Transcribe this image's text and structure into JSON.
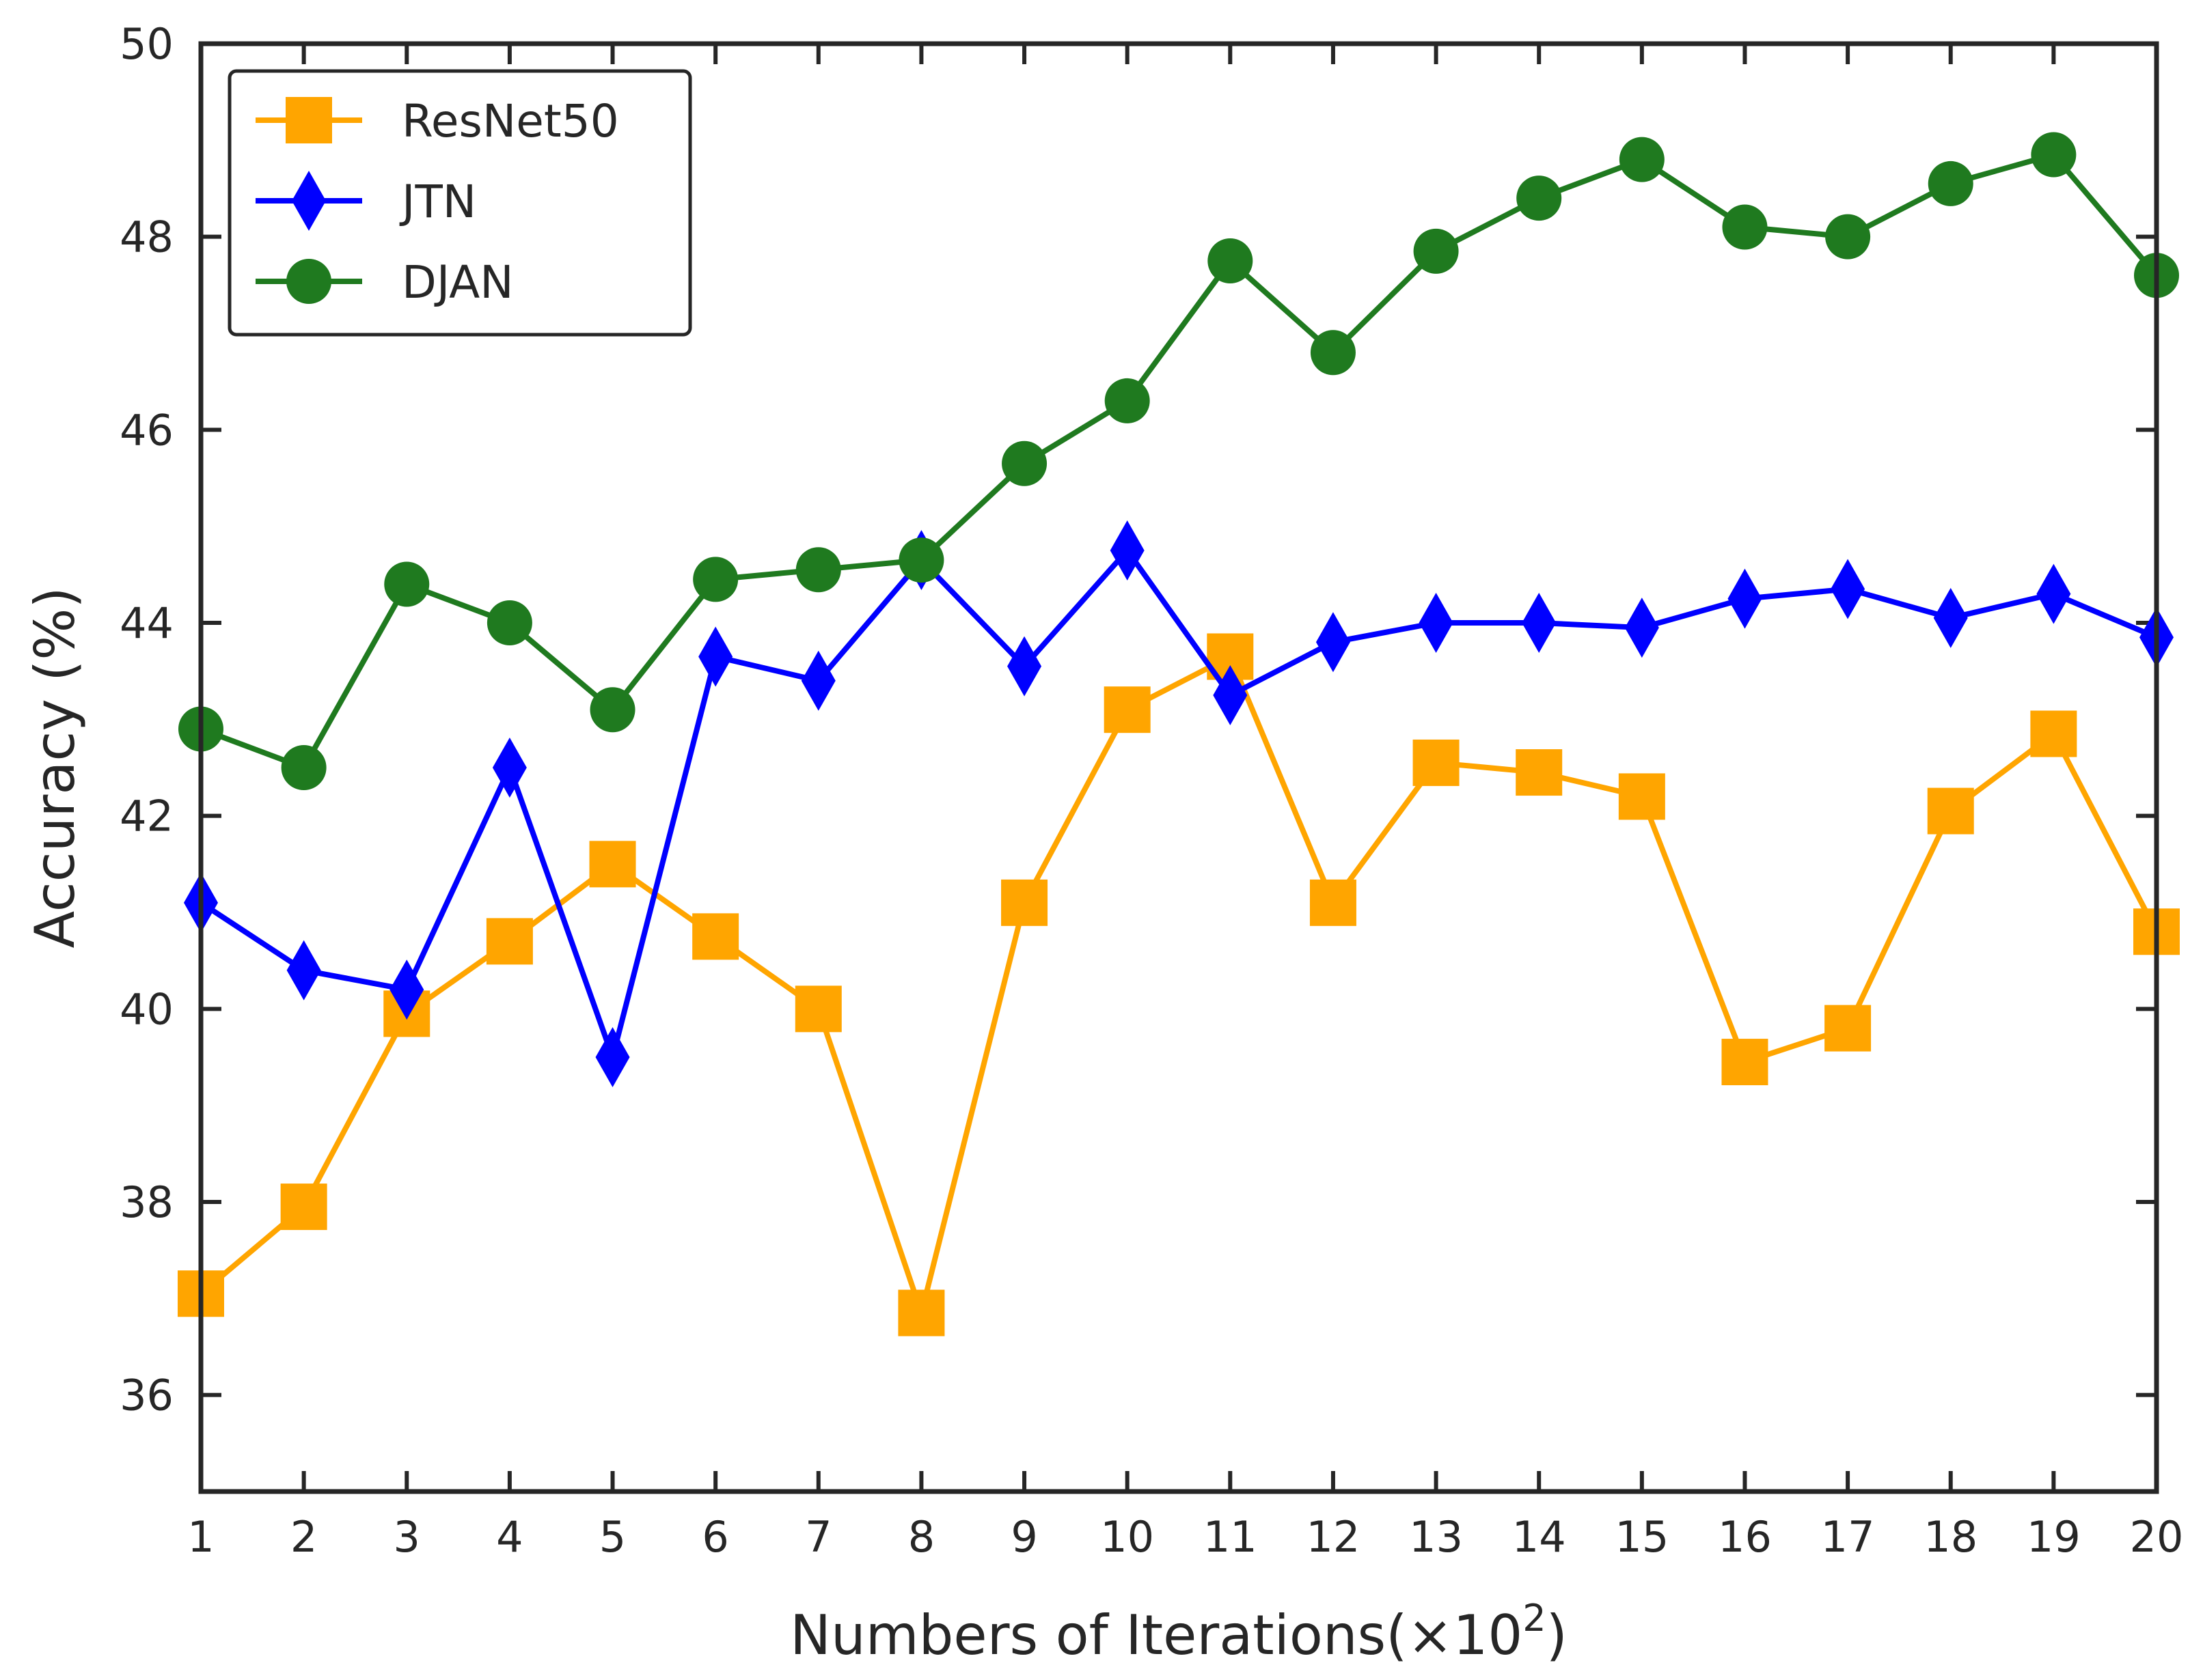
{
  "chart_data": {
    "type": "line",
    "title": "",
    "xlabel": "Numbers of Iterations(×10",
    "xlabel_sup": "2",
    "xlabel_close": ")",
    "ylabel": "Accuracy (%)",
    "xlim": [
      1,
      20
    ],
    "ylim": [
      35,
      50
    ],
    "x": [
      1,
      2,
      3,
      4,
      5,
      6,
      7,
      8,
      9,
      10,
      11,
      12,
      13,
      14,
      15,
      16,
      17,
      18,
      19,
      20
    ],
    "xticks": [
      "1",
      "2",
      "3",
      "4",
      "5",
      "6",
      "7",
      "8",
      "9",
      "10",
      "11",
      "12",
      "13",
      "14",
      "15",
      "16",
      "17",
      "18",
      "19",
      "20"
    ],
    "yticks": [
      36,
      38,
      40,
      42,
      44,
      46,
      48,
      50
    ],
    "grid": false,
    "legend_position": "top-left",
    "series": [
      {
        "name": "ResNet50",
        "color": "#ffa500",
        "marker": "square",
        "values": [
          37.05,
          37.95,
          39.95,
          40.7,
          41.5,
          40.75,
          40.0,
          36.85,
          41.1,
          43.1,
          43.65,
          41.1,
          42.55,
          42.45,
          42.2,
          39.45,
          39.8,
          42.05,
          42.85,
          40.8
        ]
      },
      {
        "name": "JTN",
        "color": "#0000ff",
        "marker": "diamond",
        "values": [
          41.1,
          40.4,
          40.2,
          42.5,
          39.5,
          43.65,
          43.4,
          44.65,
          43.55,
          44.75,
          43.25,
          43.8,
          44.0,
          44.0,
          43.95,
          44.25,
          44.35,
          44.05,
          44.3,
          43.85
        ]
      },
      {
        "name": "DJAN",
        "color": "#1f7a1f",
        "marker": "circle",
        "values": [
          42.9,
          42.5,
          44.4,
          44.0,
          43.1,
          44.45,
          44.55,
          44.65,
          45.65,
          46.3,
          47.75,
          46.8,
          47.85,
          48.4,
          48.8,
          48.1,
          48.0,
          48.55,
          48.85,
          47.6
        ]
      }
    ]
  }
}
